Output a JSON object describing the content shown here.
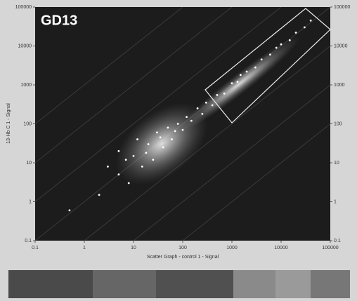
{
  "chart_data": {
    "type": "scatter",
    "title": "GD13",
    "x_label": "Scatter Graph - control 1 - Signal",
    "y_label": "13-Hb C 1 - Signal",
    "x": [
      0.5,
      2,
      3,
      5,
      8,
      10,
      12,
      15,
      20,
      25,
      30,
      40,
      50,
      60,
      80,
      100,
      120,
      150,
      200,
      250,
      300,
      400,
      500,
      700,
      1000,
      1300,
      1500,
      2000,
      3000,
      4000,
      6000,
      8000,
      10000,
      15000,
      20000,
      30000,
      40000,
      5,
      7,
      18,
      35,
      70
    ],
    "values": [
      0.6,
      1.5,
      8,
      20,
      3,
      15,
      40,
      8,
      30,
      12,
      60,
      25,
      80,
      40,
      100,
      70,
      150,
      120,
      250,
      180,
      350,
      300,
      550,
      600,
      1100,
      1200,
      1800,
      2200,
      2800,
      4500,
      6000,
      9000,
      11000,
      14000,
      22000,
      30000,
      45000,
      5,
      12,
      18,
      45,
      65
    ],
    "color": "#ffffff",
    "log_scale": true,
    "xlim": [
      0.1,
      100000
    ],
    "ylim": [
      0.1,
      100000
    ],
    "xticks": [
      0.1,
      1,
      10,
      100,
      1000,
      10000,
      100000
    ],
    "yticks": [
      0.1,
      1,
      10,
      100,
      1000,
      10000,
      100000
    ]
  }
}
